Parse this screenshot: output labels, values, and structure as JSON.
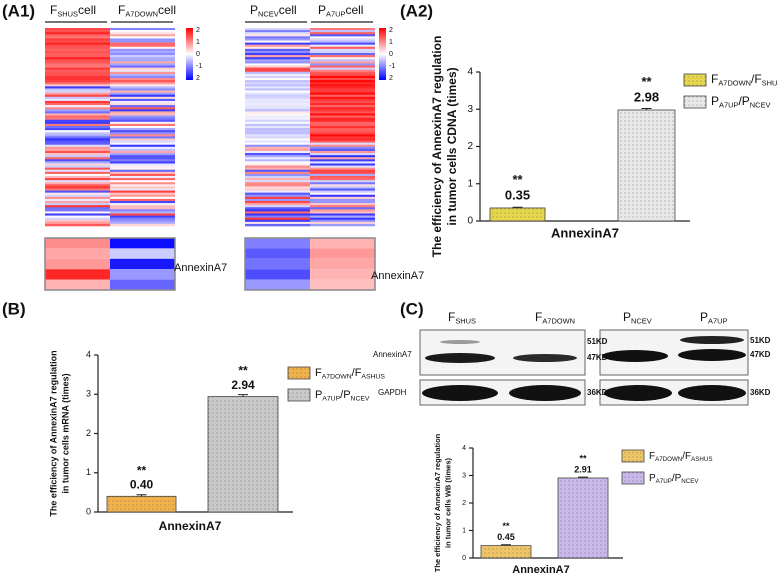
{
  "panels": {
    "a1": "(A1)",
    "a2": "(A2)",
    "b": "(B)",
    "c": "(C)"
  },
  "heatmaps": [
    {
      "columns": [
        [
          "F",
          "SHUS",
          "cell"
        ],
        [
          "F",
          "A7DOWN",
          "cell"
        ]
      ],
      "colorbar": [
        2,
        1,
        0,
        -1,
        2
      ],
      "gene": "AnnexinA7"
    },
    {
      "columns": [
        [
          "P",
          "NCEV",
          "cell"
        ],
        [
          "P",
          "A7UP",
          "cell"
        ]
      ],
      "colorbar": [
        2,
        1,
        0,
        -1,
        2
      ],
      "gene": "AnnexinA7"
    }
  ],
  "blot": {
    "lanes": [
      [
        "F",
        "SHUS"
      ],
      [
        "F",
        "A7DOWN"
      ],
      [
        "P",
        "NCEV"
      ],
      [
        "P",
        "A7UP"
      ]
    ],
    "rows": [
      "AnnexinA7",
      "GAPDH"
    ],
    "left_markers": [
      "51KD",
      "47KD",
      "36KD"
    ],
    "right_markers": [
      "51KD",
      "47KD",
      "36KD"
    ]
  },
  "chart_data": [
    {
      "type": "bar",
      "y_label": [
        "The efficiency of AnnexinA7 regulation",
        "in tumor cells   CDNA   (times)"
      ],
      "categories": [
        "AnnexinA7"
      ],
      "ylim": [
        0,
        4
      ],
      "yticks": [
        0,
        1,
        2,
        3,
        4
      ],
      "series": [
        {
          "name": [
            "F",
            "A7DOWN",
            "/F",
            "SHUS"
          ],
          "color": "#e6d64c",
          "values": [
            0.35
          ],
          "errors": [
            0.02
          ],
          "significance": [
            "**"
          ]
        },
        {
          "name": [
            "P",
            "A7UP",
            "/P",
            "NCEV"
          ],
          "color": "#e8e8e8",
          "values": [
            2.98
          ],
          "errors": [
            0.04
          ],
          "significance": [
            "**"
          ]
        }
      ]
    },
    {
      "type": "bar",
      "y_label": [
        "The efficiency of AnnexinA7 regulation",
        "in tumor cells   mRNA   (times)"
      ],
      "categories": [
        "AnnexinA7"
      ],
      "ylim": [
        0,
        4
      ],
      "yticks": [
        0,
        1,
        2,
        3,
        4
      ],
      "series": [
        {
          "name": [
            "F",
            "A7DOWN",
            "/F",
            "ASHUS"
          ],
          "color": "#f1b24e",
          "values": [
            0.4
          ],
          "value_labels": [
            "0.40"
          ],
          "errors": [
            0.04
          ],
          "significance": [
            "**"
          ]
        },
        {
          "name": [
            "P",
            "A7UP",
            "/P",
            "NCEV"
          ],
          "color": "#c9c9c9",
          "values": [
            2.94
          ],
          "errors": [
            0.05
          ],
          "significance": [
            "**"
          ]
        }
      ]
    },
    {
      "type": "bar",
      "y_label": [
        "The efficiency of AnnexinA7 regulation",
        "in tumor cells   WB   (times)"
      ],
      "categories": [
        "AnnexinA7"
      ],
      "ylim": [
        0,
        4
      ],
      "yticks": [
        0,
        1,
        2,
        3,
        4
      ],
      "series": [
        {
          "name": [
            "F",
            "A7DOWN",
            "/F",
            "ASHUS"
          ],
          "color": "#edc566",
          "values": [
            0.45
          ],
          "errors": [
            0.03
          ],
          "significance": [
            "**"
          ]
        },
        {
          "name": [
            "P",
            "A7UP",
            "/P",
            "NCEV"
          ],
          "color": "#c9b8ea",
          "values": [
            2.91
          ],
          "errors": [
            0.03
          ],
          "significance": [
            "**"
          ]
        }
      ]
    }
  ]
}
